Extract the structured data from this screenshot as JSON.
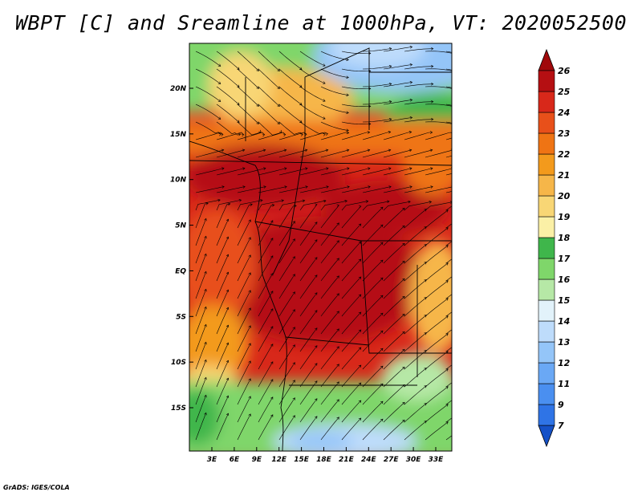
{
  "title": "WBPT [C] and Sreamline at 1000hPa, VT: 2020052500",
  "credit": "GrADS: IGES/COLA",
  "map": {
    "lon_ticks": [
      {
        "value": 3,
        "label": "3E"
      },
      {
        "value": 6,
        "label": "6E"
      },
      {
        "value": 9,
        "label": "9E"
      },
      {
        "value": 12,
        "label": "12E"
      },
      {
        "value": 15,
        "label": "15E"
      },
      {
        "value": 18,
        "label": "18E"
      },
      {
        "value": 21,
        "label": "21E"
      },
      {
        "value": 24,
        "label": "24E"
      },
      {
        "value": 27,
        "label": "27E"
      },
      {
        "value": 30,
        "label": "30E"
      },
      {
        "value": 33,
        "label": "33E"
      }
    ],
    "lat_ticks": [
      {
        "value": 20,
        "label": "20N"
      },
      {
        "value": 15,
        "label": "15N"
      },
      {
        "value": 10,
        "label": "10N"
      },
      {
        "value": 5,
        "label": "5N"
      },
      {
        "value": 0,
        "label": "EQ"
      },
      {
        "value": -5,
        "label": "5S"
      },
      {
        "value": -10,
        "label": "10S"
      },
      {
        "value": -15,
        "label": "15S"
      }
    ],
    "lon_range": [
      0,
      35
    ],
    "lat_range": [
      -20,
      25
    ]
  },
  "colorbar": {
    "levels": [
      {
        "label": "7",
        "color": "#1a5fd6"
      },
      {
        "label": "9",
        "color": "#2f74e6"
      },
      {
        "label": "11",
        "color": "#4a8ff0"
      },
      {
        "label": "12",
        "color": "#6aa8f5"
      },
      {
        "label": "13",
        "color": "#94c5f8"
      },
      {
        "label": "14",
        "color": "#bedcfb"
      },
      {
        "label": "15",
        "color": "#e2f2fa"
      },
      {
        "label": "16",
        "color": "#b6e8a6"
      },
      {
        "label": "17",
        "color": "#7fd66a"
      },
      {
        "label": "18",
        "color": "#3fb64b"
      },
      {
        "label": "19",
        "color": "#fbf0a6"
      },
      {
        "label": "20",
        "color": "#f8d675"
      },
      {
        "label": "21",
        "color": "#f6b649"
      },
      {
        "label": "22",
        "color": "#f39a1c"
      },
      {
        "label": "23",
        "color": "#ef7414"
      },
      {
        "label": "24",
        "color": "#e8501a"
      },
      {
        "label": "25",
        "color": "#d8281a"
      },
      {
        "label": "26",
        "color": "#b50f12"
      }
    ],
    "under_color": "#1551c7",
    "over_color": "#a0080a"
  }
}
